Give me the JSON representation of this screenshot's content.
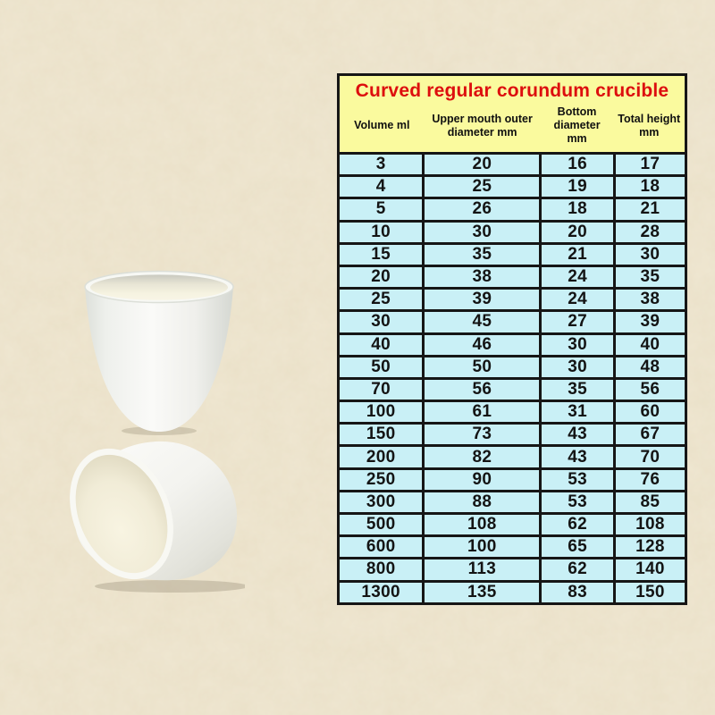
{
  "colors": {
    "page_bg": "#e9dfc6",
    "table_header_bg": "#fafa9e",
    "table_title_red": "#dd0e0e",
    "table_cell_bg": "#c9f0f6",
    "table_border": "#161616",
    "crucible_white": "#f6f6f2",
    "crucible_interior_cream": "#f3eeda"
  },
  "table": {
    "title": "Curved regular corundum crucible",
    "columns": [
      "Volume ml",
      "Upper mouth outer diameter mm",
      "Bottom diameter mm",
      "Total height mm"
    ],
    "rows": [
      [
        3,
        20,
        16,
        17
      ],
      [
        4,
        25,
        19,
        18
      ],
      [
        5,
        26,
        18,
        21
      ],
      [
        10,
        30,
        20,
        28
      ],
      [
        15,
        35,
        21,
        30
      ],
      [
        20,
        38,
        24,
        35
      ],
      [
        25,
        39,
        24,
        38
      ],
      [
        30,
        45,
        27,
        39
      ],
      [
        40,
        46,
        30,
        40
      ],
      [
        50,
        50,
        30,
        48
      ],
      [
        70,
        56,
        35,
        56
      ],
      [
        100,
        61,
        31,
        60
      ],
      [
        150,
        73,
        43,
        67
      ],
      [
        200,
        82,
        43,
        70
      ],
      [
        250,
        90,
        53,
        76
      ],
      [
        300,
        88,
        53,
        85
      ],
      [
        500,
        108,
        62,
        108
      ],
      [
        600,
        100,
        65,
        128
      ],
      [
        800,
        113,
        62,
        140
      ],
      [
        1300,
        135,
        83,
        150
      ]
    ]
  }
}
